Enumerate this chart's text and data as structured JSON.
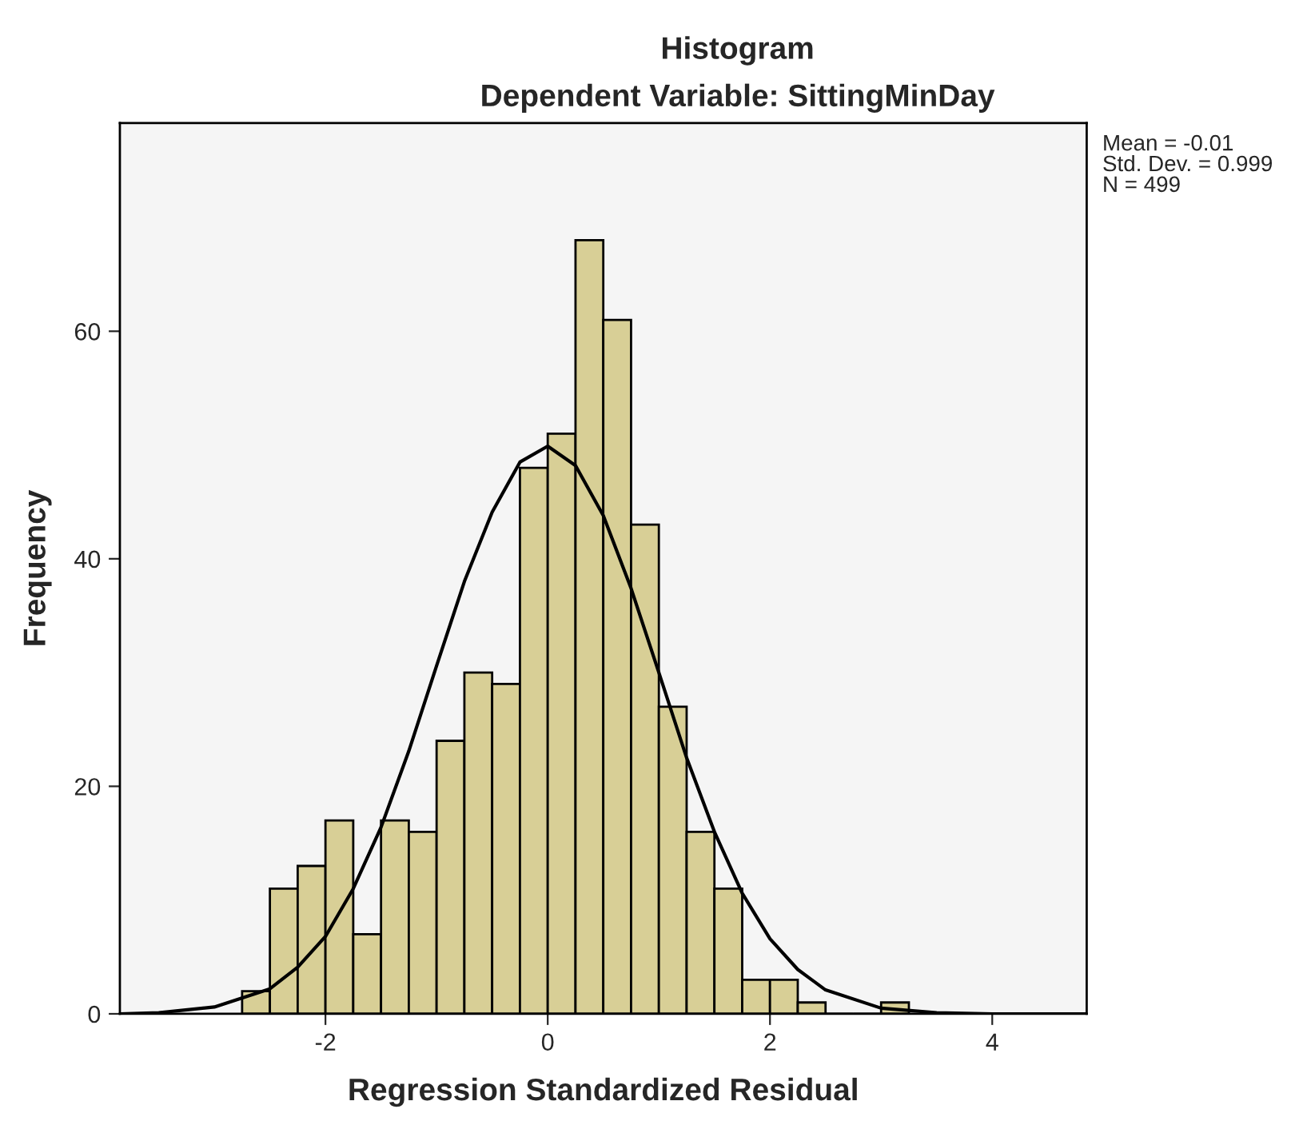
{
  "chart_data": {
    "type": "histogram",
    "title": "Histogram",
    "subtitle": "Dependent Variable: SittingMinDay",
    "xlabel": "Regression Standardized Residual",
    "ylabel": "Frequency",
    "bins": [
      -2.75,
      -2.5,
      -2.25,
      -2.0,
      -1.75,
      -1.5,
      -1.25,
      -1.0,
      -0.75,
      -0.5,
      -0.25,
      0.0,
      0.25,
      0.5,
      0.75,
      1.0,
      1.25,
      1.5,
      1.75,
      2.0,
      2.25,
      2.5,
      2.75,
      3.0,
      3.25
    ],
    "values": [
      2,
      11,
      13,
      17,
      7,
      17,
      16,
      24,
      30,
      29,
      48,
      51,
      68,
      61,
      43,
      27,
      16,
      11,
      3,
      3,
      1,
      0,
      0,
      1
    ],
    "color": "#d8cf96",
    "series": [
      {
        "type": "line",
        "color": "#000000",
        "x": [
          -3.85,
          -3.5,
          -3.0,
          -2.5,
          -2.25,
          -2.0,
          -1.75,
          -1.5,
          -1.25,
          -1.0,
          -0.75,
          -0.5,
          -0.25,
          0.0,
          0.25,
          0.5,
          0.75,
          1.0,
          1.25,
          1.5,
          1.75,
          2.0,
          2.25,
          2.5,
          3.0,
          3.5,
          4.0,
          4.85
        ],
        "values": [
          0.0,
          0.1,
          0.6,
          2.2,
          4.1,
          6.8,
          11.0,
          16.4,
          23.1,
          30.6,
          38.0,
          44.1,
          48.5,
          49.9,
          48.2,
          43.8,
          37.4,
          30.0,
          22.5,
          16.0,
          10.6,
          6.6,
          3.9,
          2.1,
          0.5,
          0.1,
          0.0,
          0.0
        ]
      }
    ],
    "xlim": [
      -3.85,
      4.85
    ],
    "ylim": [
      0,
      78.3
    ],
    "xticks": [
      -2,
      0,
      2,
      4
    ],
    "yticks": [
      0,
      20,
      40,
      60
    ],
    "grid": false,
    "legend": false,
    "annotations": [
      "Mean = -0.01",
      "Std. Dev. = 0.999",
      "N = 499"
    ]
  }
}
